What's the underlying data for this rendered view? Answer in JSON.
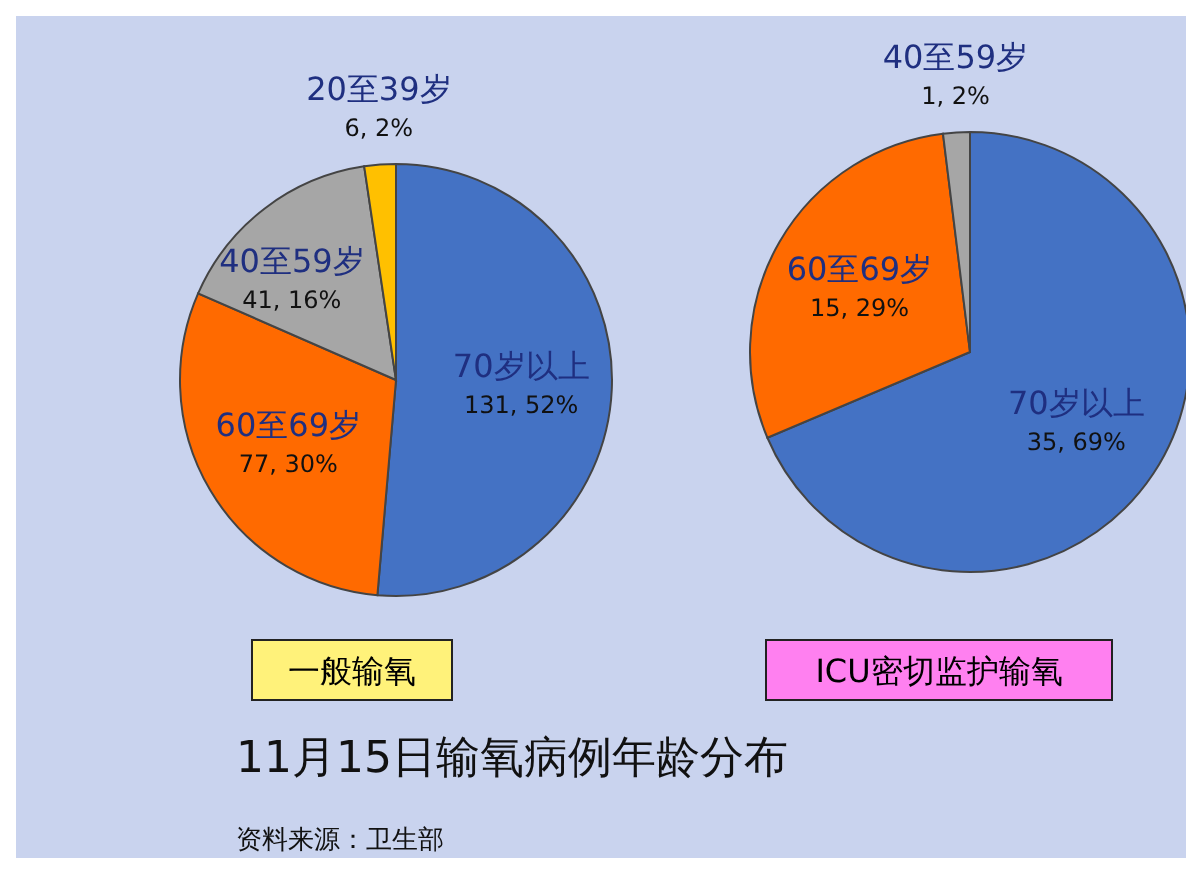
{
  "chart_data": [
    {
      "type": "pie",
      "title": "一般输氧",
      "categories": [
        "70岁以上",
        "60至69岁",
        "40至59岁",
        "20至39岁"
      ],
      "values": [
        131,
        77,
        41,
        6
      ],
      "value_labels": [
        "131, 52%",
        "77, 30%",
        "41, 16%",
        "6, 2%"
      ],
      "colors": [
        "#4472c4",
        "#ff6a00",
        "#a6a6a6",
        "#ffc000"
      ]
    },
    {
      "type": "pie",
      "title": "ICU密切监护输氧",
      "categories": [
        "70岁以上",
        "60至69岁",
        "40至59岁"
      ],
      "values": [
        35,
        15,
        1
      ],
      "value_labels": [
        "35, 69%",
        "15, 29%",
        "1, 2%"
      ],
      "colors": [
        "#4472c4",
        "#ff6a00",
        "#a6a6a6"
      ]
    },
    {
      "type": "other",
      "title": "11月15日输氧病例年龄分布",
      "annotations": [
        "资料来源：卫生部"
      ]
    }
  ]
}
